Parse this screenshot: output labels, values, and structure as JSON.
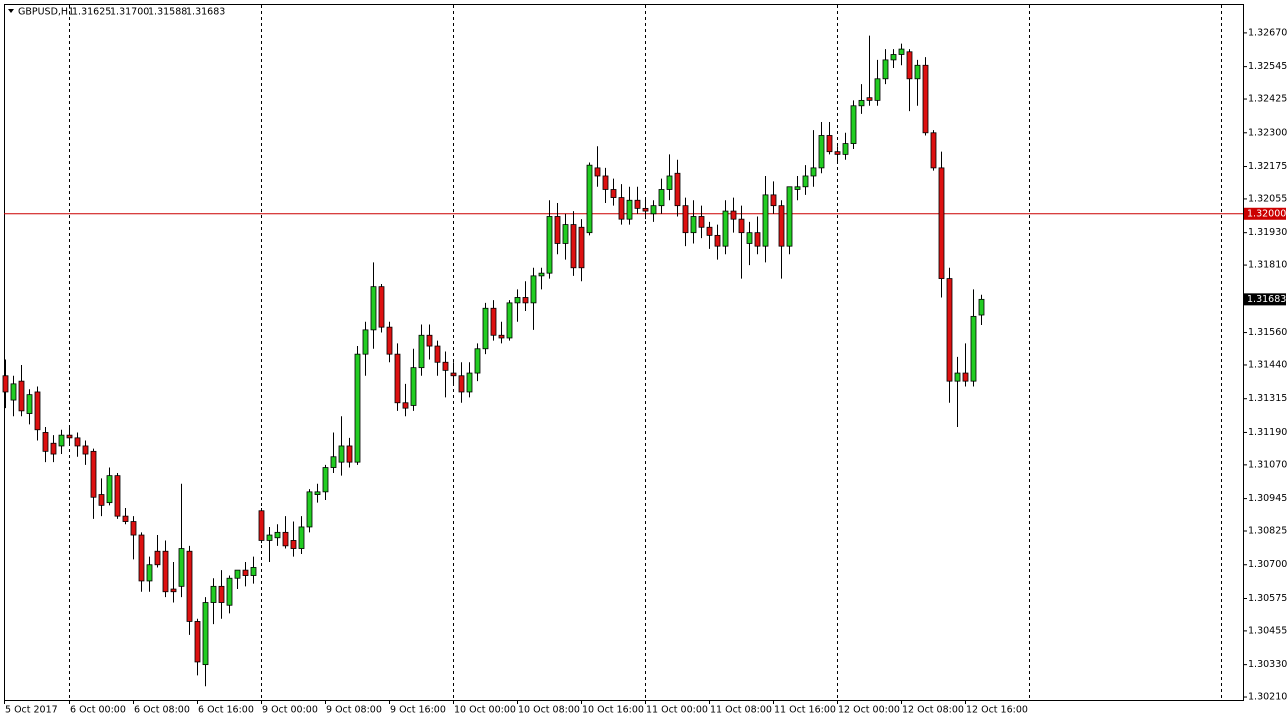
{
  "chart_data": {
    "type": "candlestick",
    "symbol": "GBPUSD,H1",
    "header_values": [
      "1.31625",
      "1.31700",
      "1.31588",
      "1.31683"
    ],
    "up_color": "#22cc22",
    "down_color": "#dd1111",
    "categories": [
      "5 Oct 2017",
      null,
      null,
      null,
      null,
      null,
      null,
      null,
      "6 Oct 00:00",
      null,
      null,
      null,
      null,
      null,
      null,
      null,
      "6 Oct 08:00",
      null,
      null,
      null,
      null,
      null,
      null,
      null,
      "6 Oct 16:00",
      null,
      null,
      null,
      null,
      null,
      null,
      null,
      "9 Oct 00:00",
      null,
      null,
      null,
      null,
      null,
      null,
      null,
      "9 Oct 08:00",
      null,
      null,
      null,
      null,
      null,
      null,
      null,
      "9 Oct 16:00",
      null,
      null,
      null,
      null,
      null,
      null,
      null,
      "10 Oct 00:00",
      null,
      null,
      null,
      null,
      null,
      null,
      null,
      "10 Oct 08:00",
      null,
      null,
      null,
      null,
      null,
      null,
      null,
      "10 Oct 16:00",
      null,
      null,
      null,
      null,
      null,
      null,
      null,
      "11 Oct 00:00",
      null,
      null,
      null,
      null,
      null,
      null,
      null,
      "11 Oct 08:00",
      null,
      null,
      null,
      null,
      null,
      null,
      null,
      "11 Oct 16:00",
      null,
      null,
      null,
      null,
      null,
      null,
      null,
      "12 Oct 00:00",
      null,
      null,
      null,
      null,
      null,
      null,
      null,
      "12 Oct 08:00",
      null,
      null,
      null,
      null,
      null,
      null,
      null,
      "12 Oct 16:00",
      null,
      null
    ],
    "open": [
      1.314,
      1.3131,
      1.3138,
      1.3126,
      1.3134,
      1.3119,
      1.3115,
      1.3114,
      1.3118,
      1.3117,
      1.3114,
      1.3112,
      1.3096,
      1.3093,
      1.3103,
      1.3088,
      1.3086,
      1.3081,
      1.3064,
      1.3075,
      1.3075,
      1.3061,
      1.3062,
      1.3075,
      1.3049,
      1.3033,
      1.3056,
      1.3062,
      1.3055,
      1.3065,
      1.3068,
      1.3066,
      1.309,
      1.3079,
      1.308,
      1.3082,
      1.3079,
      1.3076,
      1.3084,
      1.3096,
      1.3097,
      1.3106,
      1.3108,
      1.3114,
      1.3108,
      1.3148,
      1.3157,
      1.3173,
      1.3158,
      1.3148,
      1.313,
      1.3129,
      1.3143,
      1.3155,
      1.3151,
      1.3145,
      1.3141,
      1.314,
      1.3134,
      1.3141,
      1.315,
      1.3165,
      1.3155,
      1.3154,
      1.3167,
      1.3169,
      1.3167,
      1.3177,
      1.3178,
      1.3199,
      1.3189,
      1.3196,
      1.3195,
      1.3193,
      1.3217,
      1.3214,
      1.3209,
      1.3206,
      1.3198,
      1.3205,
      1.3202,
      1.32,
      1.3203,
      1.3209,
      1.3215,
      1.3203,
      1.3193,
      1.3199,
      1.3195,
      1.3192,
      1.3188,
      1.3201,
      1.3198,
      1.3189,
      1.3193,
      1.3188,
      1.3207,
      1.3203,
      1.3188,
      1.3209,
      1.321,
      1.3214,
      1.3217,
      1.3229,
      1.3223,
      1.3222,
      1.3226,
      1.324,
      1.3243,
      1.3242,
      1.325,
      1.3257,
      1.3259,
      1.326,
      1.325,
      1.3255,
      1.323,
      1.3217,
      1.3176,
      1.3138,
      1.3141,
      1.3138,
      1.31625
    ],
    "high": [
      1.3146,
      1.314,
      1.3144,
      1.3135,
      1.3136,
      1.3121,
      1.3118,
      1.312,
      1.3121,
      1.3119,
      1.3116,
      1.3113,
      1.3102,
      1.3106,
      1.3104,
      1.3091,
      1.3088,
      1.3082,
      1.3073,
      1.3081,
      1.3079,
      1.3071,
      1.31,
      1.3077,
      1.305,
      1.3058,
      1.3065,
      1.3068,
      1.3066,
      1.3068,
      1.3071,
      1.3073,
      1.3091,
      1.3084,
      1.3085,
      1.3088,
      1.3086,
      1.3088,
      1.3098,
      1.31,
      1.3107,
      1.3119,
      1.3125,
      1.3117,
      1.3151,
      1.316,
      1.3182,
      1.3174,
      1.316,
      1.3152,
      1.3137,
      1.315,
      1.3159,
      1.3159,
      1.3153,
      1.3149,
      1.3145,
      1.3145,
      1.3145,
      1.3152,
      1.3167,
      1.3168,
      1.316,
      1.3168,
      1.3172,
      1.3175,
      1.318,
      1.318,
      1.3205,
      1.3204,
      1.32,
      1.3201,
      1.3198,
      1.3219,
      1.3225,
      1.3217,
      1.3213,
      1.3211,
      1.321,
      1.321,
      1.3206,
      1.3205,
      1.3213,
      1.3222,
      1.322,
      1.3206,
      1.3205,
      1.3203,
      1.3197,
      1.3196,
      1.3205,
      1.3206,
      1.3203,
      1.3197,
      1.3199,
      1.3214,
      1.3212,
      1.3205,
      1.321,
      1.3214,
      1.3218,
      1.3231,
      1.3234,
      1.3234,
      1.3225,
      1.323,
      1.3242,
      1.3248,
      1.3266,
      1.3257,
      1.3261,
      1.3261,
      1.3263,
      1.3261,
      1.3257,
      1.3258,
      1.3231,
      1.3223,
      1.318,
      1.3147,
      1.3152,
      1.3172,
      1.317
    ],
    "low": [
      1.3128,
      1.3125,
      1.3125,
      1.3122,
      1.3116,
      1.3108,
      1.3108,
      1.3111,
      1.3114,
      1.311,
      1.3107,
      1.3087,
      1.3088,
      1.3092,
      1.3087,
      1.3085,
      1.3072,
      1.306,
      1.306,
      1.3069,
      1.3058,
      1.3056,
      1.3058,
      1.3044,
      1.3029,
      1.3025,
      1.3048,
      1.305,
      1.3052,
      1.3061,
      1.3062,
      1.3063,
      1.3078,
      1.3071,
      1.3077,
      1.3076,
      1.3073,
      1.3074,
      1.3082,
      1.3093,
      1.3094,
      1.3104,
      1.3103,
      1.3106,
      1.3107,
      1.314,
      1.315,
      1.3156,
      1.3145,
      1.3127,
      1.3125,
      1.3127,
      1.314,
      1.3146,
      1.314,
      1.3132,
      1.3137,
      1.313,
      1.3132,
      1.3138,
      1.3148,
      1.3153,
      1.3152,
      1.3153,
      1.316,
      1.3164,
      1.3157,
      1.3172,
      1.3176,
      1.3185,
      1.3183,
      1.3177,
      1.3175,
      1.3192,
      1.321,
      1.3204,
      1.3203,
      1.3196,
      1.3196,
      1.32,
      1.3198,
      1.3197,
      1.32,
      1.3205,
      1.3199,
      1.3188,
      1.3189,
      1.3191,
      1.3187,
      1.3183,
      1.3185,
      1.3193,
      1.3176,
      1.3181,
      1.3185,
      1.3182,
      1.32,
      1.3176,
      1.3185,
      1.3205,
      1.3207,
      1.321,
      1.3215,
      1.3222,
      1.3219,
      1.322,
      1.3224,
      1.3237,
      1.324,
      1.324,
      1.3248,
      1.3254,
      1.3255,
      1.3238,
      1.324,
      1.3229,
      1.3216,
      1.3169,
      1.313,
      1.3121,
      1.3136,
      1.3136,
      1.31588
    ],
    "close": [
      1.3134,
      1.3137,
      1.3127,
      1.3133,
      1.312,
      1.3112,
      1.3111,
      1.3118,
      1.3117,
      1.3114,
      1.3111,
      1.3095,
      1.3092,
      1.3103,
      1.3088,
      1.3086,
      1.3081,
      1.3064,
      1.307,
      1.307,
      1.306,
      1.306,
      1.3076,
      1.3049,
      1.3034,
      1.3056,
      1.3062,
      1.3056,
      1.3065,
      1.3068,
      1.3066,
      1.3069,
      1.3079,
      1.3081,
      1.3082,
      1.3077,
      1.3076,
      1.3084,
      1.3097,
      1.3097,
      1.3106,
      1.311,
      1.3114,
      1.3108,
      1.3148,
      1.3157,
      1.3173,
      1.3158,
      1.3148,
      1.313,
      1.3128,
      1.3143,
      1.3155,
      1.3151,
      1.3145,
      1.3142,
      1.314,
      1.3134,
      1.3141,
      1.315,
      1.3165,
      1.3155,
      1.3154,
      1.3167,
      1.3169,
      1.3167,
      1.3177,
      1.3178,
      1.3199,
      1.3189,
      1.3196,
      1.318,
      1.318,
      1.3218,
      1.3214,
      1.3209,
      1.3206,
      1.3198,
      1.3205,
      1.3202,
      1.3201,
      1.3203,
      1.3209,
      1.3214,
      1.3203,
      1.3193,
      1.3199,
      1.3195,
      1.3192,
      1.3188,
      1.3201,
      1.3198,
      1.3193,
      1.3193,
      1.3188,
      1.3207,
      1.3203,
      1.3188,
      1.321,
      1.321,
      1.3214,
      1.3217,
      1.3229,
      1.3223,
      1.3222,
      1.3226,
      1.324,
      1.3242,
      1.3242,
      1.325,
      1.3257,
      1.3259,
      1.3261,
      1.325,
      1.3255,
      1.323,
      1.3217,
      1.3176,
      1.3138,
      1.3141,
      1.3138,
      1.3162,
      1.31683
    ],
    "ylim": [
      1.30199,
      1.32777
    ],
    "yticks": [
      {
        "value": 1.3267,
        "label": "1.32670"
      },
      {
        "value": 1.32545,
        "label": "1.32545"
      },
      {
        "value": 1.32425,
        "label": "1.32425"
      },
      {
        "value": 1.323,
        "label": "1.32300"
      },
      {
        "value": 1.32175,
        "label": "1.32175"
      },
      {
        "value": 1.32055,
        "label": "1.32055"
      },
      {
        "value": 1.3193,
        "label": "1.31930"
      },
      {
        "value": 1.3181,
        "label": "1.31810"
      },
      {
        "value": 1.3156,
        "label": "1.31560"
      },
      {
        "value": 1.3144,
        "label": "1.31440"
      },
      {
        "value": 1.31315,
        "label": "1.31315"
      },
      {
        "value": 1.3119,
        "label": "1.31190"
      },
      {
        "value": 1.3107,
        "label": "1.31070"
      },
      {
        "value": 1.30945,
        "label": "1.30945"
      },
      {
        "value": 1.30825,
        "label": "1.30825"
      },
      {
        "value": 1.307,
        "label": "1.30700"
      },
      {
        "value": 1.30575,
        "label": "1.30575"
      },
      {
        "value": 1.30455,
        "label": "1.30455"
      },
      {
        "value": 1.3033,
        "label": "1.30330"
      },
      {
        "value": 1.3021,
        "label": "1.30210"
      }
    ],
    "hline": {
      "value": 1.32,
      "label": "1.32000",
      "color": "#cc0000"
    },
    "grid": true
  }
}
